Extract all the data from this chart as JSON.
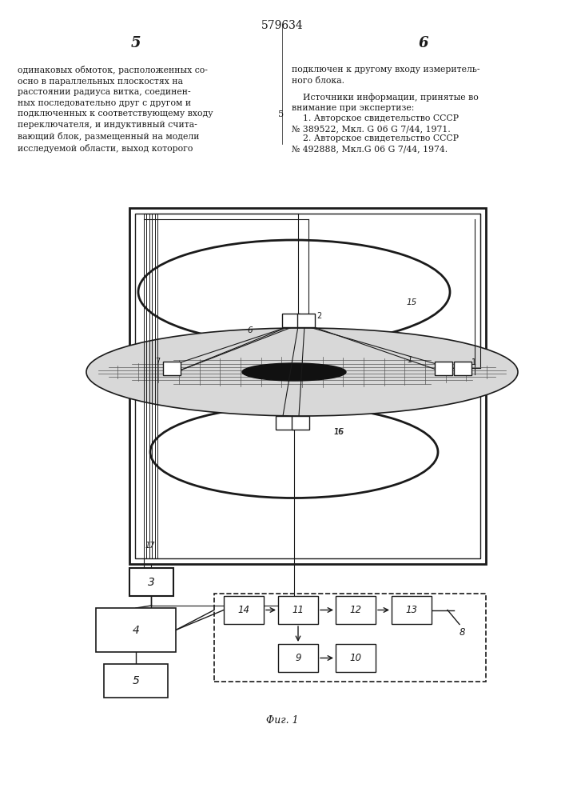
{
  "patent_number": "579634",
  "page_left": "5",
  "page_right": "6",
  "left_text": "одинаковых обмоток, расположенных со-\nосно в параллельных плоскостях на\nрасстоянии радиуса витка, соединен-\nных последовательно друг с другом и\nподключенных к соответствующему входу\nпереключателя, и индуктивный счита-\nвающий блок, размещенный на модели\nисследуемой области, выход которого",
  "right_text_1": "подключен к другому входу измеритель-\nного блока.",
  "right_text_2": "    Источники информации, принятые во\nвнимание при экспертизе:",
  "right_text_3": "    1. Авторское свидетельство СССР\n№ 389522, Мкл. G 06 G 7/44, 1971.",
  "right_text_4": "    2. Авторское свидетельство СССР\n№ 492888, Мкл.G 06 G 7/44, 1974.",
  "center_number": "5",
  "fig_label": "Φиг. 1",
  "bg_color": "#ffffff",
  "line_color": "#1a1a1a"
}
